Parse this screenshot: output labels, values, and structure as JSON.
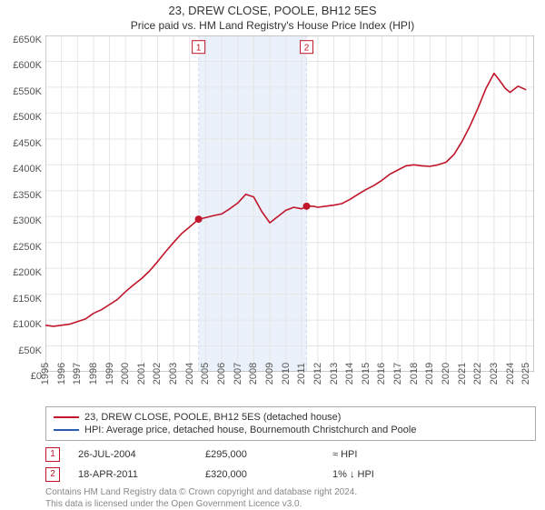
{
  "title": "23, DREW CLOSE, POOLE, BH12 5ES",
  "subtitle": "Price paid vs. HM Land Registry's House Price Index (HPI)",
  "chart": {
    "type": "line",
    "background_color": "#ffffff",
    "grid_color": "#e6e6e6",
    "axis_color": "#999999",
    "label_color": "#555555",
    "label_fontsize": 11,
    "ylim": [
      0,
      650000
    ],
    "ytick_step": 50000,
    "ytick_prefix": "£",
    "ytick_suffix": "K",
    "yticks": [
      "£0",
      "£50K",
      "£100K",
      "£150K",
      "£200K",
      "£250K",
      "£300K",
      "£350K",
      "£400K",
      "£450K",
      "£500K",
      "£550K",
      "£600K",
      "£650K"
    ],
    "xlim": [
      1995,
      2025.5
    ],
    "xticks": [
      1995,
      1996,
      1997,
      1998,
      1999,
      2000,
      2001,
      2002,
      2003,
      2004,
      2005,
      2006,
      2007,
      2008,
      2009,
      2010,
      2011,
      2012,
      2013,
      2014,
      2015,
      2016,
      2017,
      2018,
      2019,
      2020,
      2021,
      2022,
      2023,
      2024,
      2025
    ],
    "highlight_band": {
      "from": 2004.56,
      "to": 2011.3,
      "fill": "#eaf1fa",
      "border": "#d0d9e8",
      "border_dash": "3,3"
    },
    "series": [
      {
        "name": "23, DREW CLOSE, POOLE, BH12 5ES (detached house)",
        "color": "#c0152a",
        "line_width": 1.6,
        "points": [
          [
            1995.0,
            90000
          ],
          [
            1995.5,
            88000
          ],
          [
            1996.0,
            90000
          ],
          [
            1996.5,
            92000
          ],
          [
            1997.0,
            97000
          ],
          [
            1997.5,
            102000
          ],
          [
            1998.0,
            113000
          ],
          [
            1998.5,
            120000
          ],
          [
            1999.0,
            130000
          ],
          [
            1999.5,
            140000
          ],
          [
            2000.0,
            155000
          ],
          [
            2000.5,
            168000
          ],
          [
            2001.0,
            180000
          ],
          [
            2001.5,
            195000
          ],
          [
            2002.0,
            213000
          ],
          [
            2002.5,
            232000
          ],
          [
            2003.0,
            250000
          ],
          [
            2003.5,
            267000
          ],
          [
            2004.0,
            280000
          ],
          [
            2004.56,
            295000
          ],
          [
            2005.0,
            298000
          ],
          [
            2005.5,
            302000
          ],
          [
            2006.0,
            305000
          ],
          [
            2006.5,
            315000
          ],
          [
            2007.0,
            326000
          ],
          [
            2007.5,
            343000
          ],
          [
            2008.0,
            338000
          ],
          [
            2008.5,
            310000
          ],
          [
            2009.0,
            288000
          ],
          [
            2009.5,
            300000
          ],
          [
            2010.0,
            312000
          ],
          [
            2010.5,
            318000
          ],
          [
            2011.0,
            315000
          ],
          [
            2011.3,
            320000
          ],
          [
            2011.7,
            320000
          ],
          [
            2012.0,
            318000
          ],
          [
            2012.5,
            320000
          ],
          [
            2013.0,
            322000
          ],
          [
            2013.5,
            325000
          ],
          [
            2014.0,
            333000
          ],
          [
            2014.5,
            343000
          ],
          [
            2015.0,
            352000
          ],
          [
            2015.5,
            360000
          ],
          [
            2016.0,
            370000
          ],
          [
            2016.5,
            382000
          ],
          [
            2017.0,
            390000
          ],
          [
            2017.5,
            398000
          ],
          [
            2018.0,
            400000
          ],
          [
            2018.5,
            398000
          ],
          [
            2019.0,
            397000
          ],
          [
            2019.5,
            400000
          ],
          [
            2020.0,
            405000
          ],
          [
            2020.5,
            420000
          ],
          [
            2021.0,
            445000
          ],
          [
            2021.5,
            475000
          ],
          [
            2022.0,
            510000
          ],
          [
            2022.5,
            548000
          ],
          [
            2023.0,
            577000
          ],
          [
            2023.3,
            565000
          ],
          [
            2023.7,
            548000
          ],
          [
            2024.0,
            540000
          ],
          [
            2024.5,
            552000
          ],
          [
            2025.0,
            545000
          ]
        ]
      },
      {
        "name": "HPI: Average price, detached house, Bournemouth Christchurch and Poole",
        "color": "#2a5db0",
        "line_width": 1.0,
        "points": []
      }
    ],
    "transaction_markers": [
      {
        "n": 1,
        "x": 2004.56,
        "y": 295000,
        "box_y": 640000,
        "color": "#c0152a"
      },
      {
        "n": 2,
        "x": 2011.3,
        "y": 320000,
        "box_y": 640000,
        "color": "#c0152a"
      }
    ],
    "marker_dot_radius": 4
  },
  "legend": {
    "border_color": "#aaaaaa",
    "items": [
      {
        "color": "#c0152a",
        "label": "23, DREW CLOSE, POOLE, BH12 5ES (detached house)"
      },
      {
        "color": "#2a5db0",
        "label": "HPI: Average price, detached house, Bournemouth Christchurch and Poole"
      }
    ]
  },
  "transactions": [
    {
      "n": "1",
      "color": "#c0152a",
      "date": "26-JUL-2004",
      "price": "£295,000",
      "comparison": "≈ HPI"
    },
    {
      "n": "2",
      "color": "#c0152a",
      "date": "18-APR-2011",
      "price": "£320,000",
      "comparison": "1% ↓ HPI"
    }
  ],
  "footer_line1": "Contains HM Land Registry data © Crown copyright and database right 2024.",
  "footer_line2": "This data is licensed under the Open Government Licence v3.0."
}
